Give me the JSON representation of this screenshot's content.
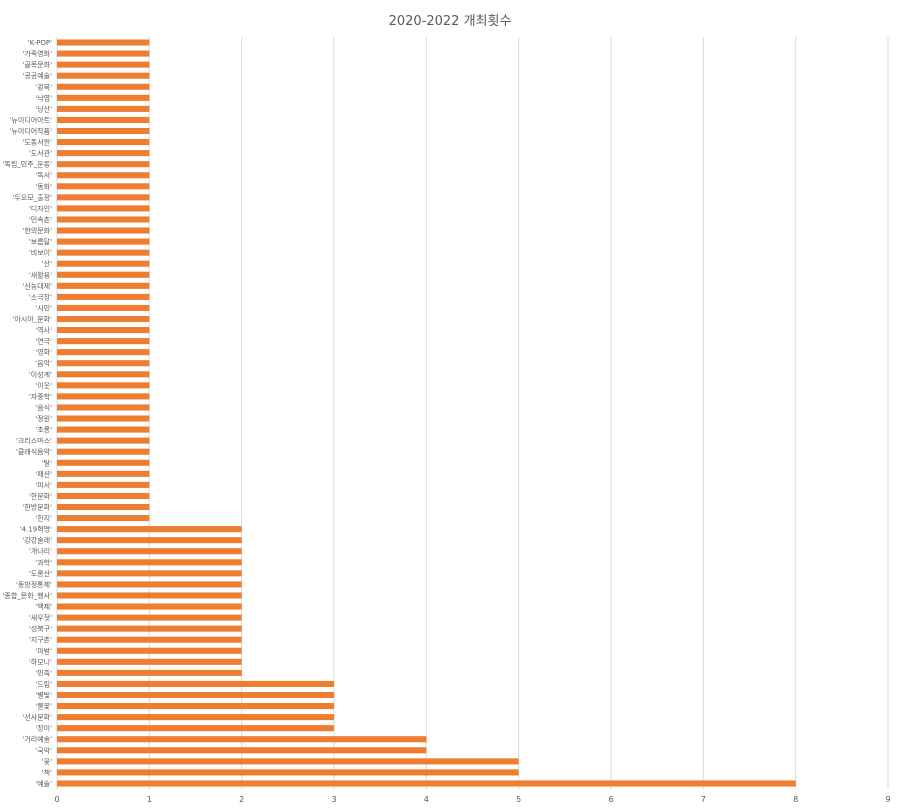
{
  "chart_data": {
    "type": "bar",
    "orientation": "horizontal",
    "title": "2020-2022 개최횟수",
    "xlabel": "",
    "ylabel": "",
    "xlim": [
      0,
      9
    ],
    "x_ticks": [
      "0",
      "1",
      "2",
      "3",
      "4",
      "5",
      "6",
      "7",
      "8",
      "9"
    ],
    "grid": true,
    "bar_color": "#ED7D31",
    "grid_color": "#D9D9D9",
    "categories": [
      "'K-POP'",
      "'가족영화'",
      "'골목문화'",
      "'공공예술'",
      "'광복'",
      "'낙엽'",
      "'낭산'",
      "'뉴미디어아트'",
      "'뉴미디어작품'",
      "'도동서원'",
      "'도서관'",
      "'독립_민주_운동'",
      "'독서'",
      "'동화'",
      "'두오모_출정'",
      "'디자인'",
      "'민속촌'",
      "'한의문화'",
      "'보름달'",
      "'비보이'",
      "'산'",
      "'새활용'",
      "'신농대제'",
      "'소극장'",
      "'시민'",
      "'아시아_문화'",
      "'역사'",
      "'연극'",
      "'영화'",
      "'음악'",
      "'이성계'",
      "'이웃'",
      "'자중학'",
      "'음식'",
      "'정원'",
      "'초롱'",
      "'크리스마스'",
      "'클래식음악'",
      "'탈'",
      "'패션'",
      "'피서'",
      "'한문화'",
      "'한방문화'",
      "'한지'",
      "'4.19혁명'",
      "'강강술래'",
      "'개나리'",
      "'과학'",
      "'도롱산'",
      "'동방정통제'",
      "'종합_문화_행사'",
      "'백제'",
      "'새우젓'",
      "'성북구'",
      "'지구촌'",
      "'파발'",
      "'하모니'",
      "'민족'",
      "'드림'",
      "'별빛'",
      "'불꽃'",
      "'선사문화'",
      "'장미'",
      "'거리예술'",
      "'국악'",
      "'꽃'",
      "'책'",
      "'예술'"
    ],
    "values": [
      1,
      1,
      1,
      1,
      1,
      1,
      1,
      1,
      1,
      1,
      1,
      1,
      1,
      1,
      1,
      1,
      1,
      1,
      1,
      1,
      1,
      1,
      1,
      1,
      1,
      1,
      1,
      1,
      1,
      1,
      1,
      1,
      1,
      1,
      1,
      1,
      1,
      1,
      1,
      1,
      1,
      1,
      1,
      1,
      2,
      2,
      2,
      2,
      2,
      2,
      2,
      2,
      2,
      2,
      2,
      2,
      2,
      2,
      3,
      3,
      3,
      3,
      3,
      4,
      4,
      5,
      5,
      8
    ]
  }
}
